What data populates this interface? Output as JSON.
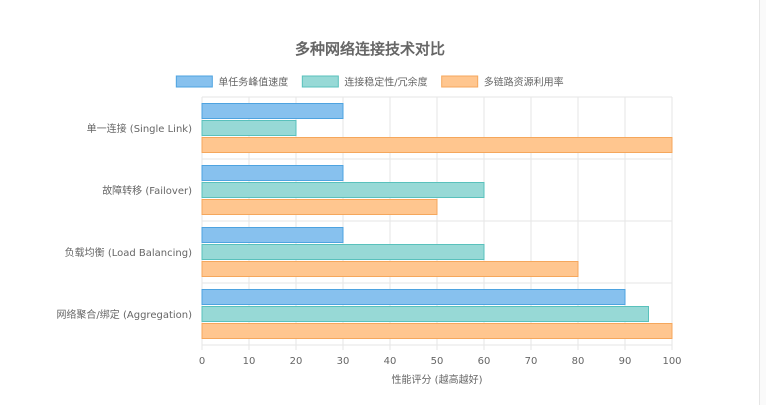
{
  "chart_data": {
    "type": "bar",
    "orientation": "horizontal",
    "title": "多种网络连接技术对比",
    "xlabel": "性能评分 (越高越好)",
    "ylabel": "",
    "xlim": [
      0,
      100
    ],
    "xticks": [
      0,
      10,
      20,
      30,
      40,
      50,
      60,
      70,
      80,
      90,
      100
    ],
    "grid": true,
    "legend_position": "top-center",
    "categories": [
      "单一连接 (Single Link)",
      "故障转移 (Failover)",
      "负载均衡 (Load Balancing)",
      "网络聚合/绑定 (Aggregation)"
    ],
    "series": [
      {
        "name": "单任务峰值速度",
        "values": [
          30,
          30,
          30,
          90
        ],
        "color": "#87c1ee",
        "border": "#4ea3e0"
      },
      {
        "name": "连接稳定性/冗余度",
        "values": [
          20,
          60,
          60,
          95
        ],
        "color": "#97d9d6",
        "border": "#59c1bc"
      },
      {
        "name": "多链路资源利用率",
        "values": [
          100,
          50,
          80,
          100
        ],
        "color": "#ffc68f",
        "border": "#f5a75c"
      }
    ]
  }
}
